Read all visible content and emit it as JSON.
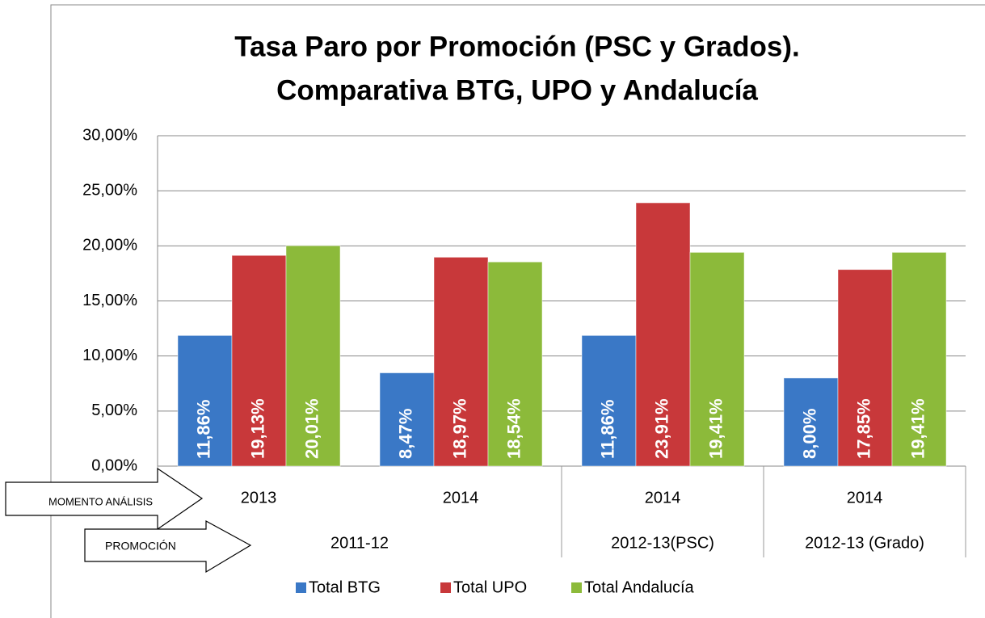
{
  "chart_data": {
    "type": "bar",
    "title": [
      "Tasa Paro por Promoción (PSC y Grados).",
      "Comparativa BTG, UPO y Andalucía"
    ],
    "categories": [
      "2013",
      "2014",
      "2014",
      "2014"
    ],
    "group_labels": [
      "2011-12",
      null,
      "2012-13(PSC)",
      "2012-13 (Grado)"
    ],
    "series": [
      {
        "name": "Total BTG",
        "color": "#3a78c6",
        "values": [
          11.86,
          8.47,
          11.86,
          8.0
        ],
        "value_labels": [
          "11,86%",
          "8,47%",
          "11,86%",
          "8,00%"
        ]
      },
      {
        "name": "Total UPO",
        "color": "#c8383a",
        "values": [
          19.13,
          18.97,
          23.91,
          17.85
        ],
        "value_labels": [
          "19,13%",
          "18,97%",
          "23,91%",
          "17,85%"
        ]
      },
      {
        "name": "Total Andalucía",
        "color": "#8cba3a",
        "values": [
          20.01,
          18.54,
          19.41,
          19.41
        ],
        "value_labels": [
          "20,01%",
          "18,54%",
          "19,41%",
          "19,41%"
        ]
      }
    ],
    "ylim": [
      0,
      30
    ],
    "yticks": [
      {
        "value": 0,
        "label": "0,00%"
      },
      {
        "value": 5,
        "label": "5,00%"
      },
      {
        "value": 10,
        "label": "10,00%"
      },
      {
        "value": 15,
        "label": "15,00%"
      },
      {
        "value": 20,
        "label": "20,00%"
      },
      {
        "value": 25,
        "label": "25,00%"
      },
      {
        "value": 30,
        "label": "30,00%"
      }
    ],
    "grid": true,
    "legend": "bottom",
    "annotations": [
      "MOMENTO ANÁLISIS",
      "PROMOCIÓN"
    ]
  }
}
